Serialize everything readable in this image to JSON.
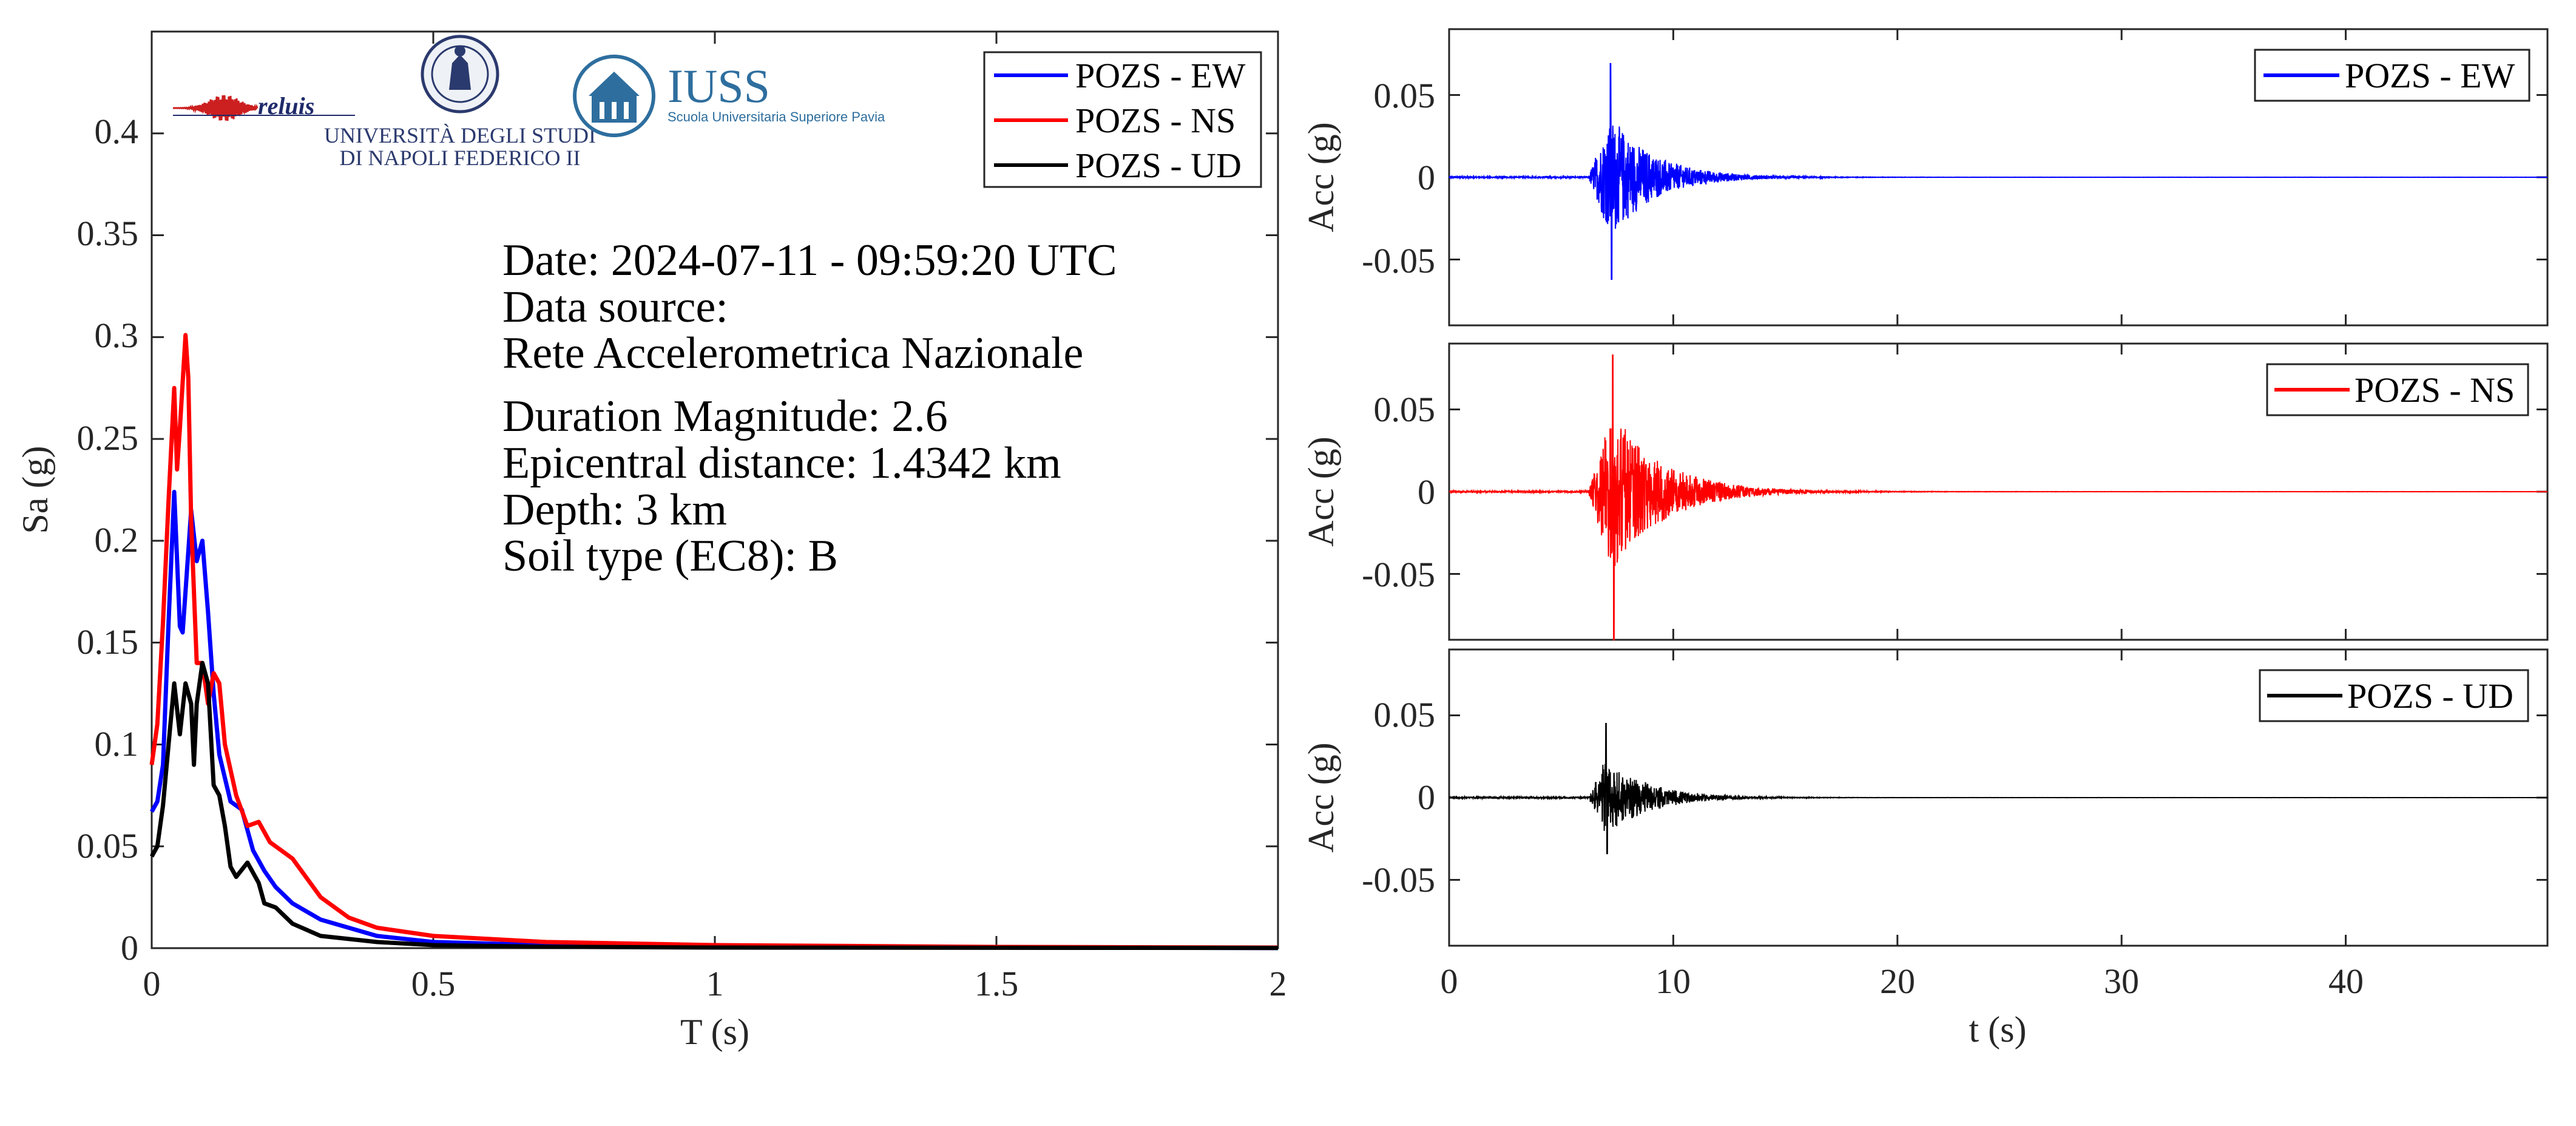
{
  "logos": {
    "reluis": "reluis",
    "unina_line1": "UNIVERSITÀ DEGLI STUDI",
    "unina_line2": "DI NAPOLI FEDERICO II",
    "iuss_title": "IUSS",
    "iuss_subtitle": "Scuola Universitaria Superiore Pavia"
  },
  "info": {
    "date": "Date: 2024-07-11 - 09:59:20 UTC",
    "source_label": "Data source:",
    "source": "Rete Accelerometrica Nazionale",
    "magnitude": "Duration Magnitude: 2.6",
    "distance": "Epicentral distance: 1.4342 km",
    "depth": "Depth: 3 km",
    "soil": "Soil type (EC8): B"
  },
  "colors": {
    "ew": "#0000ff",
    "ns": "#ff0000",
    "ud": "#000000",
    "axis": "#262626"
  },
  "chart_data": [
    {
      "type": "line",
      "xlabel": "T (s)",
      "ylabel": "Sa (g)",
      "xlim": [
        0,
        2
      ],
      "ylim": [
        0,
        0.45
      ],
      "xticks": [
        "0",
        "0.5",
        "1",
        "1.5",
        "2"
      ],
      "yticks": [
        "0",
        "0.05",
        "0.1",
        "0.15",
        "0.2",
        "0.25",
        "0.3",
        "0.35",
        "0.4"
      ],
      "legend_position": "top-right",
      "series": [
        {
          "name": "POZS - EW",
          "color": "#0000ff",
          "x": [
            0,
            0.01,
            0.02,
            0.03,
            0.04,
            0.05,
            0.055,
            0.06,
            0.07,
            0.08,
            0.09,
            0.1,
            0.11,
            0.12,
            0.14,
            0.16,
            0.18,
            0.2,
            0.22,
            0.25,
            0.3,
            0.4,
            0.5,
            0.7,
            1.0,
            1.5,
            2.0
          ],
          "values": [
            0.067,
            0.072,
            0.09,
            0.16,
            0.224,
            0.158,
            0.155,
            0.175,
            0.215,
            0.19,
            0.2,
            0.165,
            0.125,
            0.095,
            0.072,
            0.068,
            0.048,
            0.038,
            0.03,
            0.022,
            0.014,
            0.006,
            0.003,
            0.0015,
            0.0008,
            0.0003,
            0.0001
          ]
        },
        {
          "name": "POZS - NS",
          "color": "#ff0000",
          "x": [
            0,
            0.01,
            0.02,
            0.03,
            0.04,
            0.045,
            0.05,
            0.06,
            0.065,
            0.07,
            0.08,
            0.09,
            0.1,
            0.11,
            0.12,
            0.13,
            0.15,
            0.17,
            0.19,
            0.21,
            0.25,
            0.3,
            0.35,
            0.4,
            0.5,
            0.7,
            1.0,
            1.5,
            2.0
          ],
          "values": [
            0.09,
            0.11,
            0.16,
            0.22,
            0.275,
            0.235,
            0.255,
            0.301,
            0.28,
            0.21,
            0.14,
            0.14,
            0.12,
            0.135,
            0.13,
            0.1,
            0.075,
            0.06,
            0.062,
            0.052,
            0.044,
            0.025,
            0.015,
            0.01,
            0.006,
            0.003,
            0.0015,
            0.0006,
            0.0003
          ]
        },
        {
          "name": "POZS - UD",
          "color": "#000000",
          "x": [
            0,
            0.01,
            0.02,
            0.03,
            0.04,
            0.05,
            0.06,
            0.07,
            0.075,
            0.08,
            0.09,
            0.1,
            0.11,
            0.12,
            0.13,
            0.14,
            0.15,
            0.17,
            0.19,
            0.2,
            0.22,
            0.25,
            0.3,
            0.4,
            0.5,
            0.7,
            1.0,
            2.0
          ],
          "values": [
            0.045,
            0.05,
            0.07,
            0.1,
            0.13,
            0.105,
            0.13,
            0.12,
            0.09,
            0.12,
            0.14,
            0.13,
            0.08,
            0.075,
            0.06,
            0.04,
            0.035,
            0.042,
            0.032,
            0.022,
            0.02,
            0.012,
            0.006,
            0.003,
            0.0015,
            0.0007,
            0.0003,
            0.0001
          ]
        }
      ]
    },
    {
      "type": "line",
      "ylabel": "Acc (g)",
      "xlim": [
        0,
        49
      ],
      "ylim": [
        -0.09,
        0.09
      ],
      "yticks": [
        "-0.05",
        "0",
        "0.05"
      ],
      "legend_position": "top-right",
      "series": [
        {
          "name": "POZS - EW",
          "color": "#0000ff",
          "onset_s": 6.2,
          "peak_time_s": 7.2,
          "peak_max_g": 0.069,
          "peak_min_g": -0.062,
          "coda_end_s": 13,
          "duration_s": 49,
          "samples_per_s": 100
        }
      ]
    },
    {
      "type": "line",
      "ylabel": "Acc (g)",
      "xlim": [
        0,
        49
      ],
      "ylim": [
        -0.09,
        0.09
      ],
      "yticks": [
        "-0.05",
        "0",
        "0.05"
      ],
      "legend_position": "top-right",
      "series": [
        {
          "name": "POZS - NS",
          "color": "#ff0000",
          "onset_s": 6.2,
          "peak_time_s": 7.3,
          "peak_max_g": 0.083,
          "peak_min_g": -0.09,
          "coda_end_s": 14,
          "duration_s": 49,
          "samples_per_s": 100
        }
      ]
    },
    {
      "type": "line",
      "xlabel": "t (s)",
      "ylabel": "Acc (g)",
      "xlim": [
        0,
        49
      ],
      "ylim": [
        -0.09,
        0.09
      ],
      "xticks": [
        "0",
        "10",
        "20",
        "30",
        "40"
      ],
      "yticks": [
        "-0.05",
        "0",
        "0.05"
      ],
      "legend_position": "top-right",
      "series": [
        {
          "name": "POZS - UD",
          "color": "#000000",
          "onset_s": 6.2,
          "peak_time_s": 7.0,
          "peak_max_g": 0.045,
          "peak_min_g": -0.034,
          "coda_end_s": 12.5,
          "duration_s": 49,
          "samples_per_s": 100
        }
      ]
    }
  ]
}
